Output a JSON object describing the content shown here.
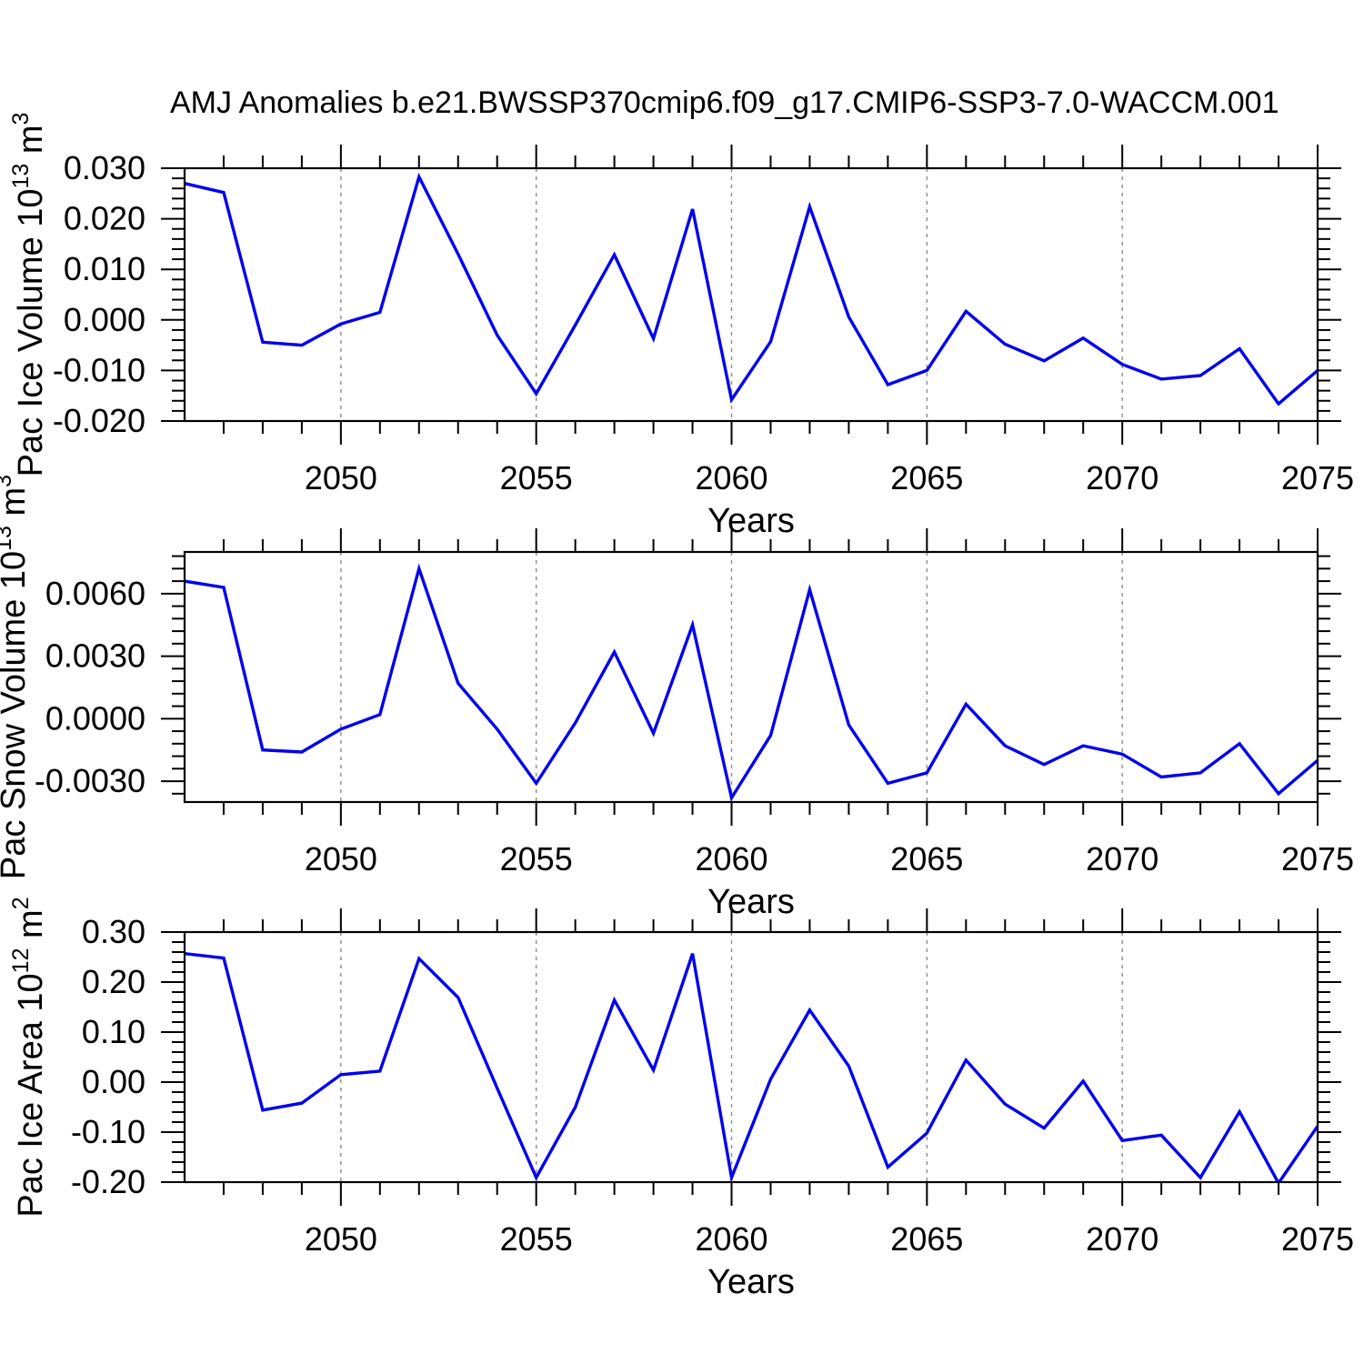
{
  "title": "AMJ Anomalies b.e21.BWSSP370cmip6.f09_g17.CMIP6-SSP3-7.0-WACCM.001",
  "colors": {
    "line": "#0000EE",
    "grid": "#8C8C8C",
    "frame": "#000000",
    "text": "#000000",
    "background": "#FFFFFF"
  },
  "chart_data": [
    {
      "type": "line",
      "name": "pac-ice-volume",
      "ylabel_parts": [
        [
          "t",
          "Pac Ice Volume 10"
        ],
        [
          "s",
          "13"
        ],
        [
          "t",
          " m"
        ],
        [
          "s",
          "3"
        ]
      ],
      "xlabel": "Years",
      "xlim": [
        2046,
        2075
      ],
      "ylim": [
        -0.02,
        0.03
      ],
      "xtick_vals": [
        2050,
        2055,
        2060,
        2065,
        2070,
        2075
      ],
      "xtick_labels": [
        "2050",
        "2055",
        "2060",
        "2065",
        "2070",
        "2075"
      ],
      "x_minor_step": 1,
      "grid_years": [
        2050,
        2055,
        2060,
        2065,
        2070
      ],
      "ytick_vals": [
        0.03,
        0.02,
        0.01,
        0.0,
        -0.01,
        -0.02
      ],
      "ytick_labels": [
        "0.030",
        "0.020",
        "0.010",
        "0.000",
        "-0.010",
        "-0.020"
      ],
      "y_minor_step": 0.002,
      "years": [
        2046,
        2047,
        2048,
        2049,
        2050,
        2051,
        2052,
        2053,
        2054,
        2055,
        2056,
        2057,
        2058,
        2059,
        2060,
        2061,
        2062,
        2063,
        2064,
        2065,
        2066,
        2067,
        2068,
        2069,
        2070,
        2071,
        2072,
        2073,
        2074,
        2075
      ],
      "values": [
        0.027,
        0.0252,
        -0.0044,
        -0.005,
        -0.0008,
        0.0015,
        0.0283,
        0.013,
        -0.003,
        -0.0146,
        -0.001,
        0.0129,
        -0.0037,
        0.0219,
        -0.0158,
        -0.0043,
        0.0224,
        0.0006,
        -0.0128,
        -0.01,
        0.0017,
        -0.0048,
        -0.0081,
        -0.0036,
        -0.0088,
        -0.0117,
        -0.011,
        -0.0057,
        -0.0166,
        -0.01
      ]
    },
    {
      "type": "line",
      "name": "pac-snow-volume",
      "ylabel_parts": [
        [
          "t",
          "Pac Snow Volume 10"
        ],
        [
          "s",
          "13"
        ],
        [
          "t",
          " m"
        ],
        [
          "s",
          "3"
        ]
      ],
      "xlabel": "Years",
      "xlim": [
        2046,
        2075
      ],
      "ylim": [
        -0.004,
        0.008
      ],
      "xtick_vals": [
        2050,
        2055,
        2060,
        2065,
        2070,
        2075
      ],
      "xtick_labels": [
        "2050",
        "2055",
        "2060",
        "2065",
        "2070",
        "2075"
      ],
      "x_minor_step": 1,
      "grid_years": [
        2050,
        2055,
        2060,
        2065,
        2070
      ],
      "ytick_vals": [
        0.006,
        0.003,
        0.0,
        -0.003
      ],
      "ytick_labels": [
        "0.0060",
        "0.0030",
        "0.0000",
        "-0.0030"
      ],
      "y_minor_step": 0.0006,
      "years": [
        2046,
        2047,
        2048,
        2049,
        2050,
        2051,
        2052,
        2053,
        2054,
        2055,
        2056,
        2057,
        2058,
        2059,
        2060,
        2061,
        2062,
        2063,
        2064,
        2065,
        2066,
        2067,
        2068,
        2069,
        2070,
        2071,
        2072,
        2073,
        2074,
        2075
      ],
      "values": [
        0.0066,
        0.0063,
        -0.0015,
        -0.0016,
        -0.0005,
        0.0002,
        0.0072,
        0.0017,
        -0.0005,
        -0.0031,
        -0.0002,
        0.0032,
        -0.0007,
        0.0045,
        -0.0038,
        -0.0008,
        0.0062,
        -0.0003,
        -0.0031,
        -0.0026,
        0.0007,
        -0.0013,
        -0.0022,
        -0.0013,
        -0.0017,
        -0.0028,
        -0.0026,
        -0.0012,
        -0.0036,
        -0.002
      ]
    },
    {
      "type": "line",
      "name": "pac-ice-area",
      "ylabel_parts": [
        [
          "t",
          "Pac Ice Area 10"
        ],
        [
          "s",
          "12"
        ],
        [
          "t",
          " m"
        ],
        [
          "s",
          "2"
        ]
      ],
      "xlabel": "Years",
      "xlim": [
        2046,
        2075
      ],
      "ylim": [
        -0.2,
        0.3
      ],
      "xtick_vals": [
        2050,
        2055,
        2060,
        2065,
        2070,
        2075
      ],
      "xtick_labels": [
        "2050",
        "2055",
        "2060",
        "2065",
        "2070",
        "2075"
      ],
      "x_minor_step": 1,
      "grid_years": [
        2050,
        2055,
        2060,
        2065,
        2070
      ],
      "ytick_vals": [
        0.3,
        0.2,
        0.1,
        0.0,
        -0.1,
        -0.2
      ],
      "ytick_labels": [
        "0.30",
        "0.20",
        "0.10",
        "0.00",
        "-0.10",
        "-0.20"
      ],
      "y_minor_step": 0.02,
      "years": [
        2046,
        2047,
        2048,
        2049,
        2050,
        2051,
        2052,
        2053,
        2054,
        2055,
        2056,
        2057,
        2058,
        2059,
        2060,
        2061,
        2062,
        2063,
        2064,
        2065,
        2066,
        2067,
        2068,
        2069,
        2070,
        2071,
        2072,
        2073,
        2074,
        2075
      ],
      "values": [
        0.257,
        0.248,
        -0.056,
        -0.042,
        0.015,
        0.022,
        0.247,
        0.169,
        -0.012,
        -0.191,
        -0.05,
        0.164,
        0.024,
        0.257,
        -0.191,
        0.006,
        0.144,
        0.032,
        -0.17,
        -0.102,
        0.044,
        -0.044,
        -0.092,
        0.002,
        -0.117,
        -0.106,
        -0.191,
        -0.059,
        -0.202,
        -0.088
      ]
    }
  ]
}
